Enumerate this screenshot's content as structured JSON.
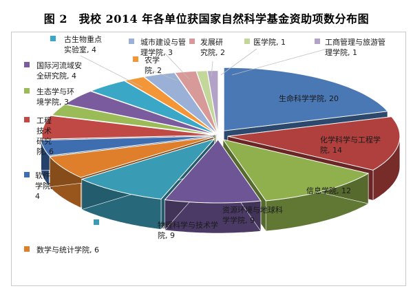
{
  "figure": {
    "caption": "图 2　我校 2014 年各单位获国家自然科学基金资助项数分布图"
  },
  "chart_data": {
    "type": "pie",
    "title": "",
    "slices": [
      {
        "label": "生命科学学院",
        "value": 20,
        "color": "#4A78B4",
        "lines": [
          "生命科学学院, 20"
        ]
      },
      {
        "label": "化学科学与工程学院",
        "value": 14,
        "color": "#B0403E",
        "lines": [
          "化学科学与工程学",
          "院, 14"
        ]
      },
      {
        "label": "信息学院",
        "value": 12,
        "color": "#8FB04D",
        "lines": [
          "信息学院, 12"
        ]
      },
      {
        "label": "资源环境与地球科学学院",
        "value": 9,
        "color": "#6E5595",
        "lines": [
          "资源环境与地球科",
          "学学院, 9"
        ]
      },
      {
        "label": "物理科学与技术学院",
        "value": 9,
        "color": "#3A9BB5",
        "lines": [
          "物理科学与技术学",
          "院, 9"
        ]
      },
      {
        "label": "数学与统计学院",
        "value": 6,
        "color": "#E07F2B",
        "lines": [
          "数学与统计学院, 6"
        ]
      },
      {
        "label": "软件学院",
        "value": 4,
        "color": "#3E6DB0",
        "lines": [
          "软件",
          "学院,",
          "4"
        ]
      },
      {
        "label": "工程技术研究院",
        "value": 6,
        "color": "#C04845",
        "lines": [
          "工程",
          "技术",
          "研究",
          "院, 6"
        ]
      },
      {
        "label": "生态学与环境学院",
        "value": 3,
        "color": "#9BBB59",
        "lines": [
          "生态学与环",
          "境学院, 3"
        ]
      },
      {
        "label": "国际河流域安全研究院",
        "value": 4,
        "color": "#7A5C9E",
        "lines": [
          "国际河流域安",
          "全研究院, 4"
        ]
      },
      {
        "label": "古生物重点实验室",
        "value": 4,
        "color": "#3AA7C7",
        "lines": [
          "古生物重点",
          "实验室, 4"
        ]
      },
      {
        "label": "农学院",
        "value": 2,
        "color": "#F39638",
        "lines": [
          "农学",
          "院, 2"
        ]
      },
      {
        "label": "城市建设与管理学院",
        "value": 3,
        "color": "#9AB0D6",
        "lines": [
          "城市建设与管",
          "理学院, 3"
        ]
      },
      {
        "label": "发展研究院",
        "value": 2,
        "color": "#D89A98",
        "lines": [
          "发展研",
          "究院, 2"
        ]
      },
      {
        "label": "医学院",
        "value": 1,
        "color": "#C4D79B",
        "lines": [
          "医学院, 1"
        ]
      },
      {
        "label": "工商管理与旅游管理学院",
        "value": 1,
        "color": "#B3A2C7",
        "lines": [
          "工商管理与旅游管",
          "理学院, 1"
        ]
      }
    ],
    "legend": "none",
    "style": "3d-exploded"
  }
}
